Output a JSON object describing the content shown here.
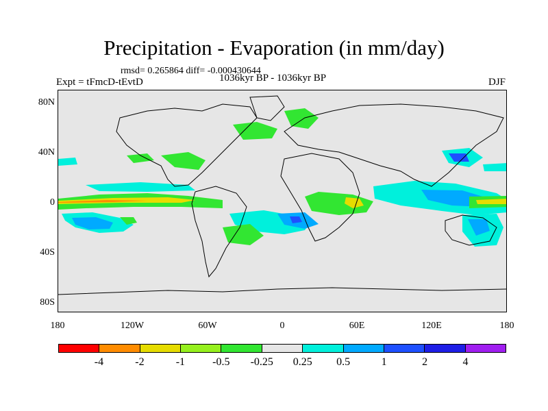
{
  "title": "Precipitation - Evaporation (in mm/day)",
  "stats": "rmsd= 0.265864  diff= -0.000430644",
  "period": "1036kyr BP - 1036kyr BP",
  "expt": "Expt = tFmcD-tEvtD",
  "season": "DJF",
  "lat_ticks": [
    "80N",
    "40N",
    "0",
    "40S",
    "80S"
  ],
  "lon_ticks": [
    "180",
    "120W",
    "60W",
    "0",
    "60E",
    "120E",
    "180"
  ],
  "colorbar": {
    "colors": [
      "#ff0000",
      "#ff8c00",
      "#e6dc00",
      "#96f01e",
      "#32e632",
      "#e6e6e6",
      "#00f0dc",
      "#00aaff",
      "#1e50ff",
      "#1e1ee6",
      "#a01ef0"
    ],
    "labels": [
      "-4",
      "-2",
      "-1",
      "-0.5",
      "-0.25",
      "0.25",
      "0.5",
      "1",
      "2",
      "4"
    ]
  }
}
